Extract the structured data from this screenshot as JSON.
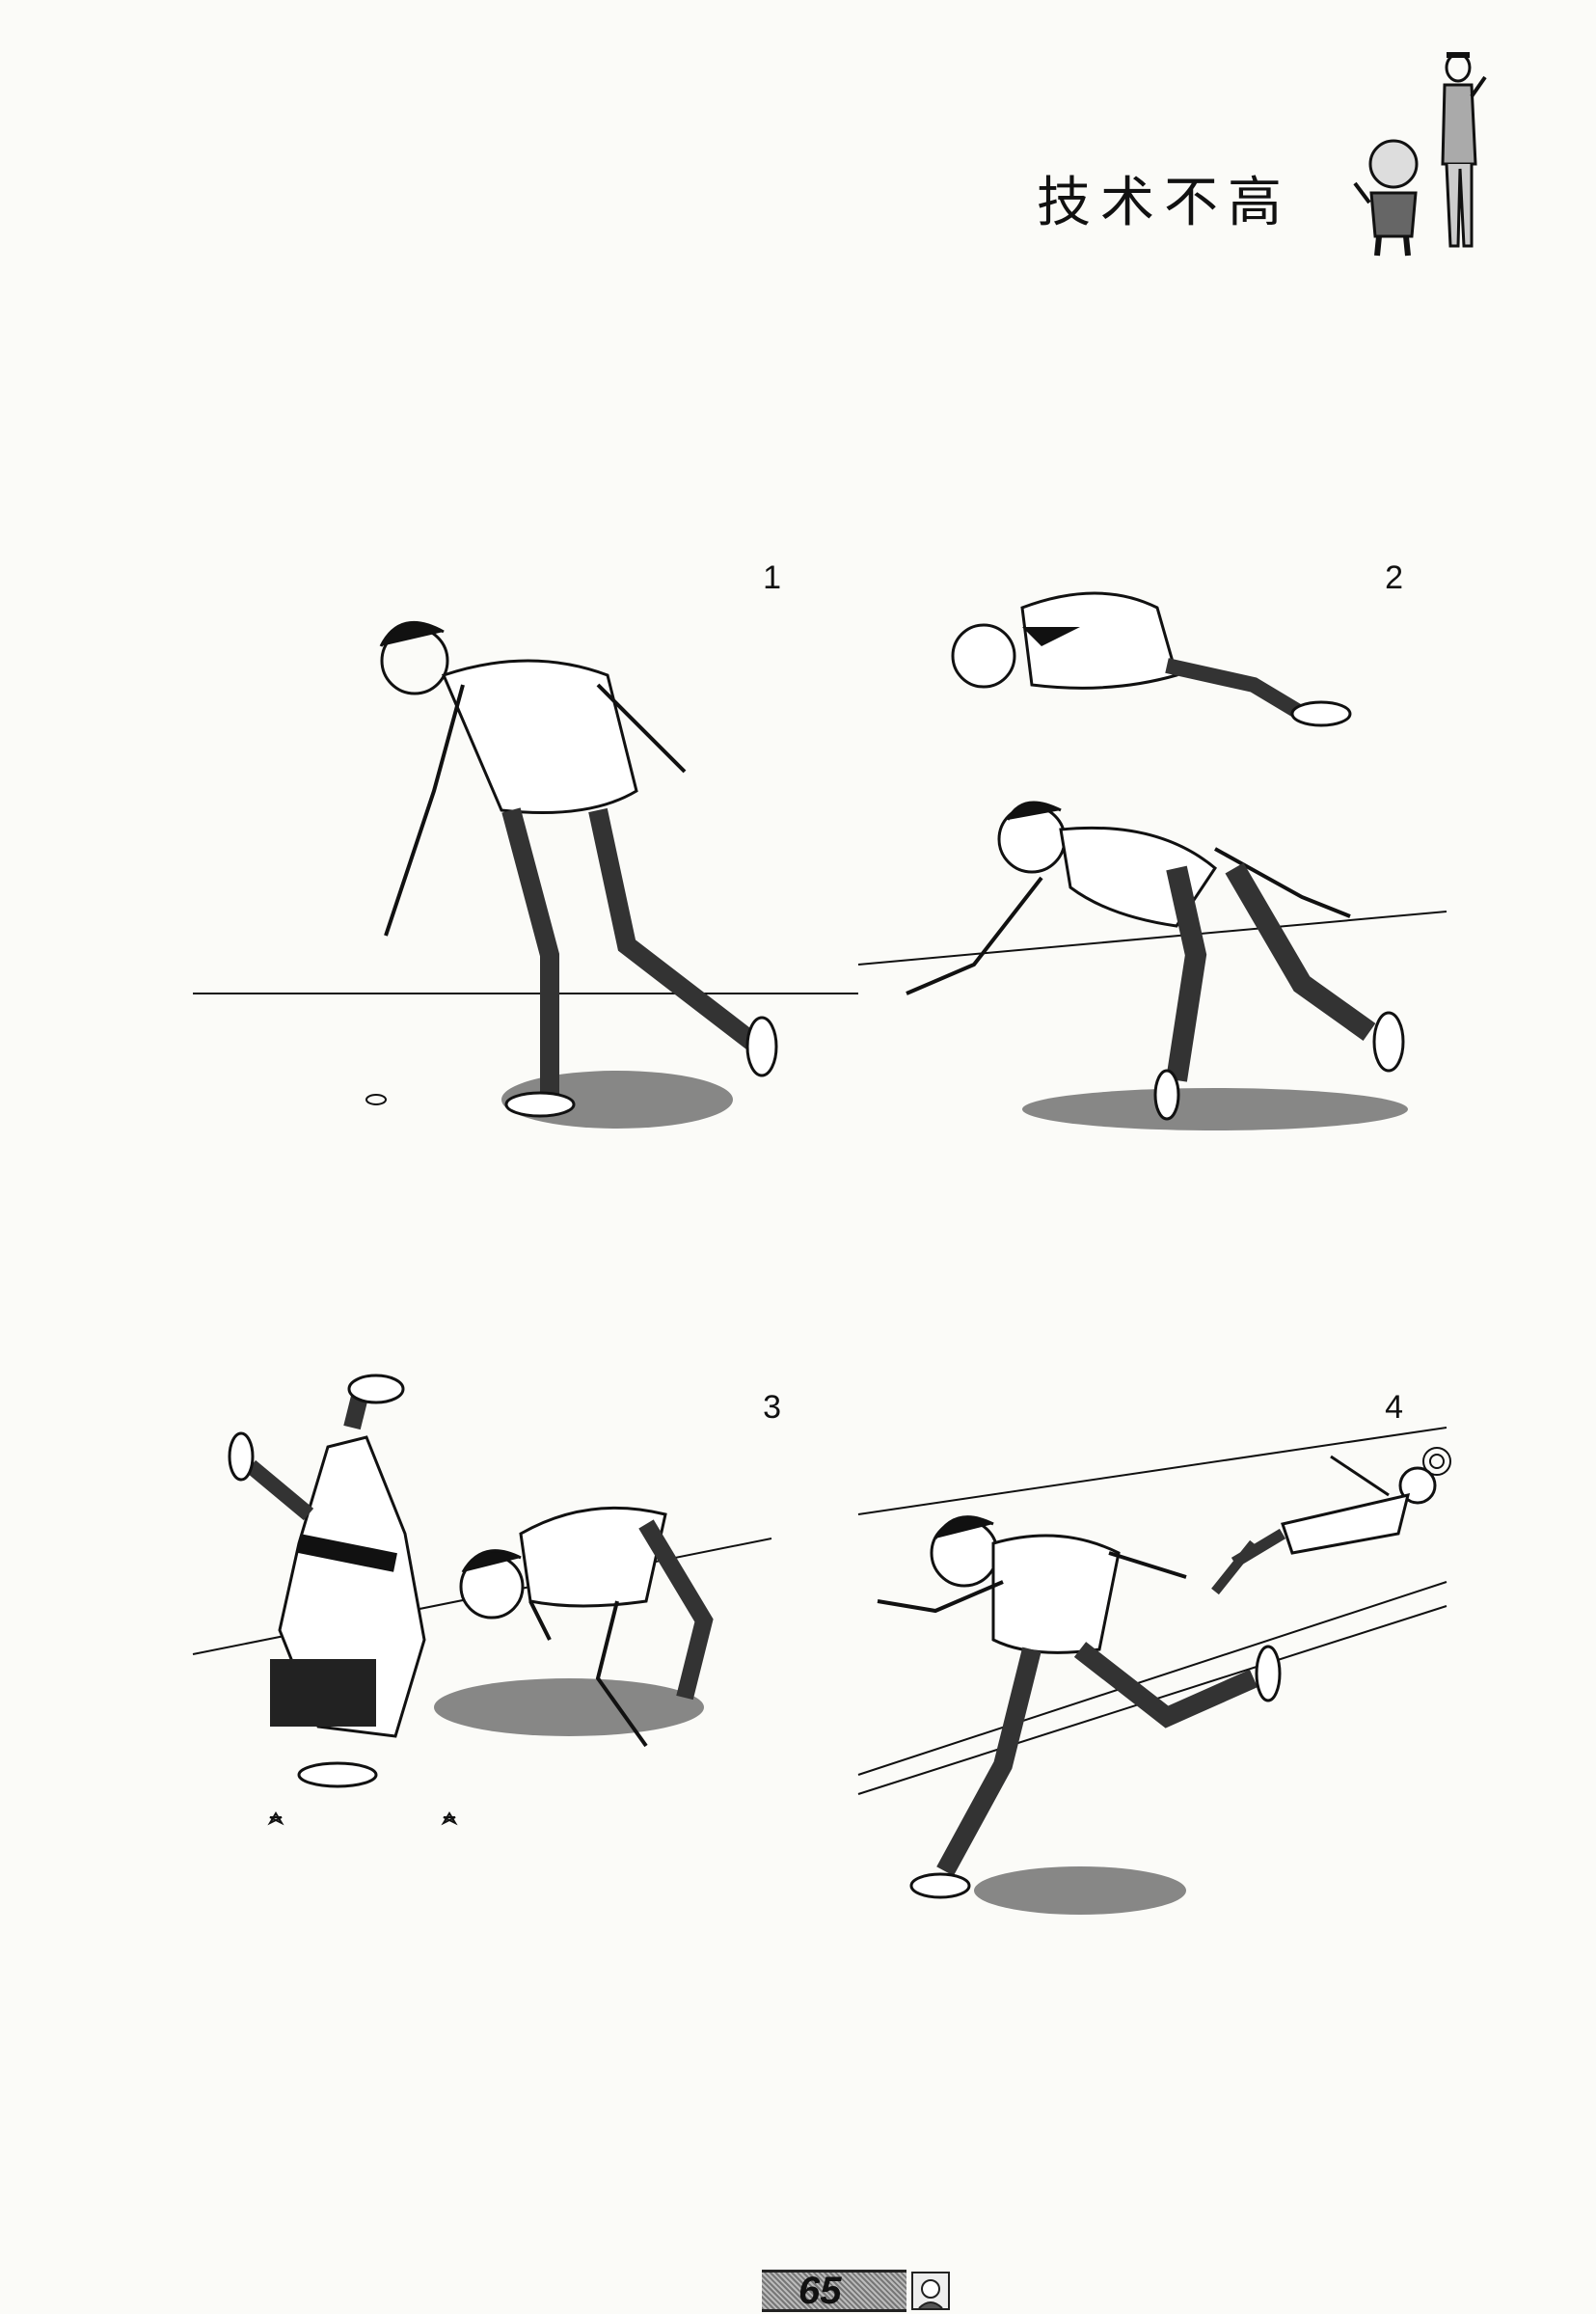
{
  "title": "技术不高",
  "panels": [
    {
      "number": "1"
    },
    {
      "number": "2"
    },
    {
      "number": "3"
    },
    {
      "number": "4"
    }
  ],
  "page_number": "65"
}
